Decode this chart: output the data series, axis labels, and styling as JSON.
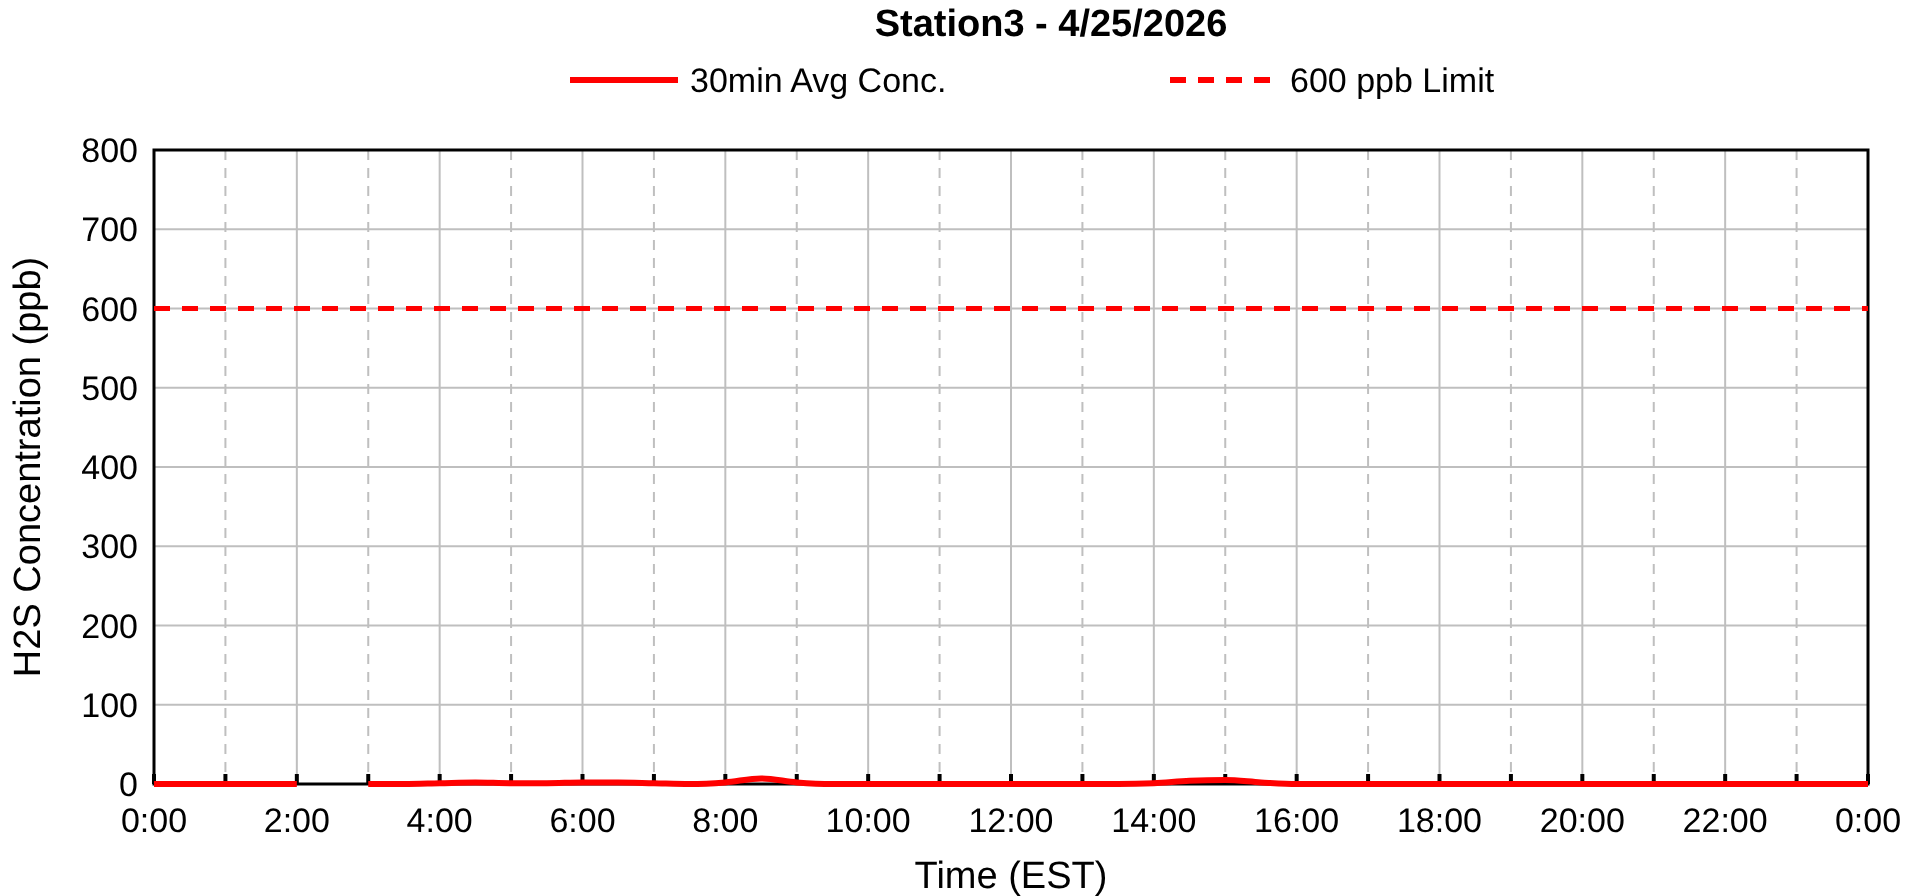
{
  "chart_data": {
    "type": "line",
    "title": "Station3  - 4/25/2026",
    "xlabel": "Time (EST)",
    "ylabel": "H2S Concentration (ppb)",
    "x": [
      0,
      0.5,
      1,
      1.5,
      2,
      2.5,
      3,
      3.5,
      4,
      4.5,
      5,
      5.5,
      6,
      6.5,
      7,
      7.5,
      8,
      8.5,
      9,
      9.5,
      10,
      10.5,
      11,
      11.5,
      12,
      12.5,
      13,
      13.5,
      14,
      14.5,
      15,
      15.5,
      16,
      16.5,
      17,
      17.5,
      18,
      18.5,
      19,
      19.5,
      20,
      20.5,
      21,
      21.5,
      22,
      22.5,
      23,
      23.5,
      24
    ],
    "series": [
      {
        "name": "30min Avg Conc.",
        "color": "#ff0000",
        "values": [
          0,
          0,
          0,
          0,
          0,
          null,
          0,
          0,
          1,
          2,
          1,
          1,
          2,
          2,
          1,
          0,
          2,
          7,
          2,
          0,
          0,
          0,
          0,
          0,
          0,
          0,
          0,
          0,
          1,
          4,
          5,
          2,
          0,
          0,
          0,
          0,
          0,
          0,
          0,
          0,
          0,
          0,
          0,
          0,
          0,
          0,
          0,
          0,
          0
        ]
      }
    ],
    "ref_lines": [
      {
        "axis": "y",
        "value": 600,
        "label": "600 ppb Limit",
        "color": "#ff0000",
        "line_style": "dashed"
      }
    ],
    "xlim": [
      0,
      24
    ],
    "xticks": [
      {
        "value": 0,
        "label": "0:00"
      },
      {
        "value": 1,
        "label": null
      },
      {
        "value": 2,
        "label": "2:00"
      },
      {
        "value": 3,
        "label": null
      },
      {
        "value": 4,
        "label": "4:00"
      },
      {
        "value": 5,
        "label": null
      },
      {
        "value": 6,
        "label": "6:00"
      },
      {
        "value": 7,
        "label": null
      },
      {
        "value": 8,
        "label": "8:00"
      },
      {
        "value": 9,
        "label": null
      },
      {
        "value": 10,
        "label": "10:00"
      },
      {
        "value": 11,
        "label": null
      },
      {
        "value": 12,
        "label": "12:00"
      },
      {
        "value": 13,
        "label": null
      },
      {
        "value": 14,
        "label": "14:00"
      },
      {
        "value": 15,
        "label": null
      },
      {
        "value": 16,
        "label": "16:00"
      },
      {
        "value": 17,
        "label": null
      },
      {
        "value": 18,
        "label": "18:00"
      },
      {
        "value": 19,
        "label": null
      },
      {
        "value": 20,
        "label": "20:00"
      },
      {
        "value": 21,
        "label": null
      },
      {
        "value": 22,
        "label": "22:00"
      },
      {
        "value": 23,
        "label": null
      },
      {
        "value": 24,
        "label": "0:00"
      }
    ],
    "ylim": [
      0,
      800
    ],
    "yticks": [
      0,
      100,
      200,
      300,
      400,
      500,
      600,
      700,
      800
    ],
    "grid": true,
    "legend": "top",
    "marker": "none",
    "line_style": "solid"
  }
}
